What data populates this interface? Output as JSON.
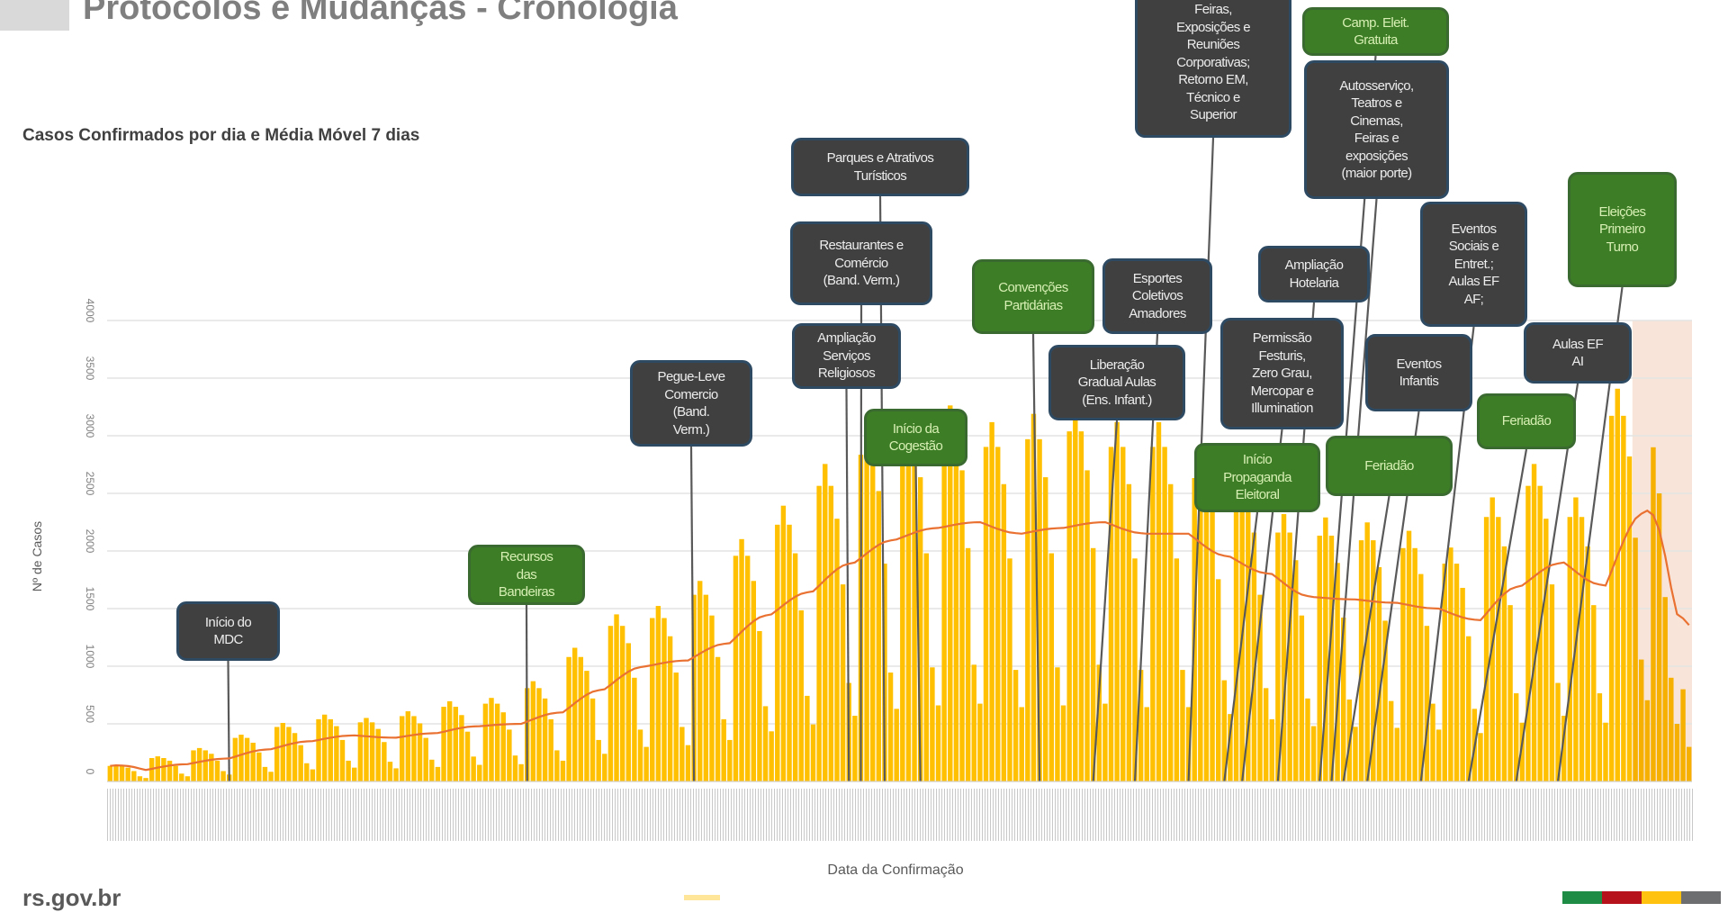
{
  "header": {
    "title": "Protocolos e Mudanças - Cronologia",
    "subtitle": "Casos Confirmados por dia e Média Móvel 7 dias",
    "site": "rs.gov.br"
  },
  "colors": {
    "bar": "#FFC000",
    "moving_average": "#E97132",
    "gray_box": "#404040",
    "green_box": "#3D7D25",
    "shade": "#F8DDD0",
    "flag": [
      "#1E8C45",
      "#B5121B",
      "#FFC20E",
      "#6D6E70"
    ]
  },
  "chart_data": {
    "type": "bar",
    "title": "Casos Confirmados por dia e Média Móvel 7 dias",
    "xlabel": "Data da Confirmação",
    "ylabel": "Nº de Casos",
    "ylim": [
      0,
      4000
    ],
    "yticks": [
      "0",
      "500",
      "1000",
      "1500",
      "2000",
      "2500",
      "3000",
      "3500",
      "4000"
    ],
    "grid": true,
    "series": [
      {
        "name": "Casos Confirmados",
        "type": "bar",
        "values": [
          135,
          145,
          135,
          120,
          90,
          45,
          30,
          203,
          218,
          203,
          180,
          135,
          68,
          45,
          270,
          290,
          270,
          240,
          180,
          90,
          60,
          378,
          406,
          378,
          336,
          252,
          126,
          84,
          473,
          508,
          473,
          420,
          315,
          158,
          105,
          540,
          580,
          540,
          480,
          360,
          180,
          120,
          513,
          551,
          513,
          456,
          342,
          171,
          114,
          567,
          609,
          567,
          504,
          378,
          189,
          126,
          648,
          696,
          648,
          576,
          432,
          216,
          144,
          675,
          725,
          675,
          600,
          450,
          225,
          150,
          810,
          870,
          810,
          720,
          540,
          270,
          180,
          1080,
          1160,
          1080,
          960,
          720,
          360,
          240,
          1350,
          1450,
          1350,
          1200,
          900,
          450,
          300,
          1418,
          1523,
          1418,
          1260,
          945,
          473,
          315,
          1620,
          1740,
          1620,
          1440,
          1080,
          540,
          360,
          1958,
          2103,
          1958,
          1740,
          1305,
          653,
          435,
          2228,
          2393,
          2228,
          1980,
          1485,
          743,
          495,
          2565,
          2755,
          2565,
          2280,
          1710,
          855,
          570,
          2835,
          3045,
          2835,
          2520,
          1890,
          945,
          630,
          2970,
          3190,
          2970,
          2640,
          1980,
          990,
          660,
          3038,
          3263,
          3038,
          2700,
          2025,
          1013,
          675,
          2903,
          3118,
          2903,
          2580,
          1935,
          968,
          645,
          2970,
          3190,
          2970,
          2640,
          1980,
          990,
          660,
          3038,
          3263,
          3038,
          2700,
          2025,
          1013,
          675,
          2903,
          3118,
          2903,
          2580,
          1935,
          968,
          645,
          2903,
          3118,
          2903,
          2580,
          1935,
          968,
          645,
          2633,
          2828,
          2633,
          2340,
          1755,
          878,
          585,
          2430,
          2610,
          2430,
          2160,
          1620,
          810,
          540,
          2160,
          2320,
          2160,
          1920,
          1440,
          720,
          480,
          2133,
          2291,
          2133,
          1896,
          1422,
          711,
          474,
          2093,
          2248,
          2093,
          1860,
          1395,
          698,
          465,
          2025,
          2175,
          2025,
          1800,
          1350,
          675,
          450,
          1890,
          2030,
          1890,
          1680,
          1260,
          630,
          420,
          2295,
          2465,
          2295,
          2040,
          1530,
          765,
          510,
          2565,
          2755,
          2565,
          2280,
          1710,
          855,
          570,
          2295,
          2465,
          2295,
          2040,
          1530,
          765,
          510,
          3173,
          3408,
          3173,
          2820,
          2115,
          1058,
          705,
          2900,
          2500,
          1600,
          900,
          500,
          800,
          300
        ]
      },
      {
        "name": "Média Móvel 7 dias",
        "type": "line",
        "derived_from": "Casos Confirmados"
      }
    ],
    "highlight": {
      "name": "recent-days-shade",
      "from_index": 256,
      "to_index": 265
    }
  },
  "annotations": [
    {
      "text": "Início do\nMDC",
      "kind": "gray",
      "at_index": 20
    },
    {
      "text": "Recursos\ndas\nBandeiras",
      "kind": "green",
      "at_index": 70
    },
    {
      "text": "Pegue-Leve\nComercio\n(Band.\nVerm.)",
      "kind": "gray",
      "at_index": 98
    },
    {
      "text": "Parques e Atrativos\nTurísticos",
      "kind": "gray",
      "at_index": 130
    },
    {
      "text": "Restaurantes e\nComércio\n(Band. Verm.)",
      "kind": "gray",
      "at_index": 126
    },
    {
      "text": "Ampliação\nServiços\nReligiosos",
      "kind": "gray",
      "at_index": 124
    },
    {
      "text": "Início da\nCogestão",
      "kind": "green",
      "at_index": 136
    },
    {
      "text": "Convenções\nPartidárias",
      "kind": "green",
      "at_index": 156
    },
    {
      "text": "Esportes\nColetivos\nAmadores",
      "kind": "gray",
      "at_index": 172
    },
    {
      "text": "Liberação\nGradual Aulas\n(Ens. Infant.)",
      "kind": "gray",
      "at_index": 165
    },
    {
      "text": "Feiras,\nExposições e\nReuniões\nCorporativas;\nRetorno EM,\nTécnico e\nSuperior",
      "kind": "gray",
      "at_index": 181
    },
    {
      "text": "Camp. Eleit.\nGratuita",
      "kind": "green",
      "at_index": 203
    },
    {
      "text": "Autosserviço,\nTeatros e\nCinemas,\nFeiras e\nexposições\n(maior porte)",
      "kind": "gray",
      "at_index": 205
    },
    {
      "text": "Ampliação\nHotelaria",
      "kind": "gray",
      "at_index": 196
    },
    {
      "text": "Permissão\nFesturis,\nZero Grau,\nMercopar e\nIllumination",
      "kind": "gray",
      "at_index": 190
    },
    {
      "text": "Início\nPropaganda\nEleitoral",
      "kind": "green",
      "at_index": 187
    },
    {
      "text": "Eventos\nInfantis",
      "kind": "gray",
      "at_index": 211
    },
    {
      "text": "Feriadão",
      "kind": "green",
      "at_index": 207
    },
    {
      "text": "Eventos\nSociais e\nEntret.;\nAulas EF\nAF;",
      "kind": "gray",
      "at_index": 220
    },
    {
      "text": "Feriadão",
      "kind": "green",
      "at_index": 228
    },
    {
      "text": "Aulas EF\nAI",
      "kind": "gray",
      "at_index": 236
    },
    {
      "text": "Eleições\nPrimeiro\nTurno",
      "kind": "green",
      "at_index": 243
    }
  ]
}
